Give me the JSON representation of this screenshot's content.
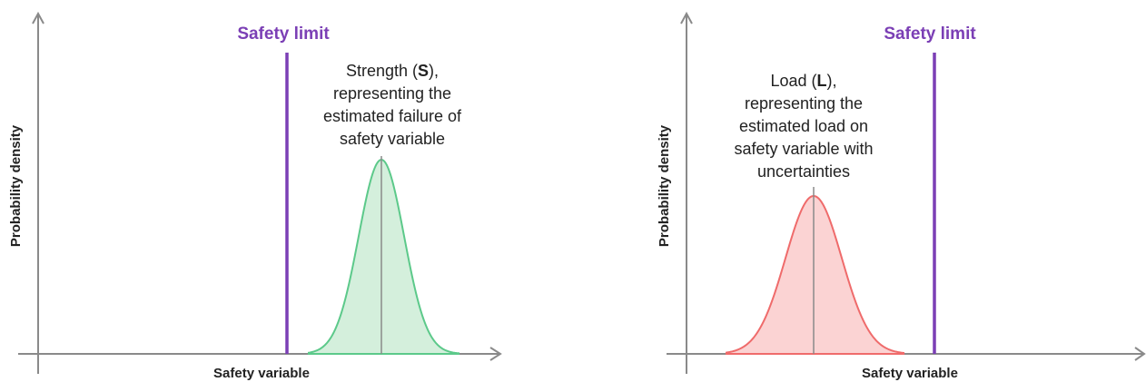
{
  "colors": {
    "limit": "#7b3fb5",
    "strength_stroke": "#5cc98a",
    "strength_fill": "#d4efdc",
    "load_stroke": "#ef6b6b",
    "load_fill": "#fbd3d3",
    "axis": "#8a8a8a"
  },
  "panels": [
    {
      "limit_label": "Safety limit",
      "xlabel": "Safety variable",
      "ylabel": "Probability density",
      "annotation": {
        "lines": [
          [
            {
              "text": "Strength ("
            },
            {
              "text": "S",
              "bold": true
            },
            {
              "text": "),"
            }
          ],
          [
            {
              "text": "representing the"
            }
          ],
          [
            {
              "text": "estimated failure of"
            }
          ],
          [
            {
              "text": "safety variable"
            }
          ]
        ]
      }
    },
    {
      "limit_label": "Safety limit",
      "xlabel": "Safety variable",
      "ylabel": "Probability density",
      "annotation": {
        "lines": [
          [
            {
              "text": "Load ("
            },
            {
              "text": "L",
              "bold": true
            },
            {
              "text": "),"
            }
          ],
          [
            {
              "text": "representing the"
            }
          ],
          [
            {
              "text": "estimated load on"
            }
          ],
          [
            {
              "text": "safety variable with"
            }
          ],
          [
            {
              "text": "uncertainties"
            }
          ]
        ]
      }
    }
  ]
}
